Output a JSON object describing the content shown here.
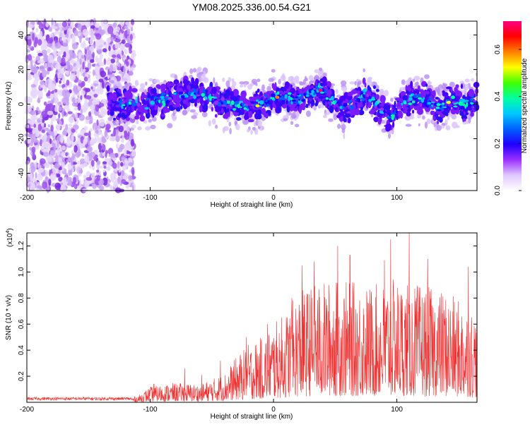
{
  "title": "YM08.2025.336.00.54.G21",
  "chart_data": [
    {
      "type": "heatmap",
      "name": "spectrogram",
      "xlabel": "Height of straight line (km)",
      "ylabel": "Frequency (Hz)",
      "xlim": [
        -200,
        165
      ],
      "ylim": [
        -50,
        48
      ],
      "xticks": [
        -200,
        -100,
        0,
        100
      ],
      "yticks": [
        -40,
        -20,
        0,
        20,
        40
      ],
      "noise_region_x": [
        -200,
        -113
      ],
      "signal_start_x": -135,
      "center_line": [
        [
          -135,
          1
        ],
        [
          -120,
          0
        ],
        [
          -100,
          1
        ],
        [
          -80,
          4
        ],
        [
          -70,
          6
        ],
        [
          -60,
          6
        ],
        [
          -50,
          2
        ],
        [
          -40,
          0
        ],
        [
          -30,
          0
        ],
        [
          -20,
          -2
        ],
        [
          -10,
          0
        ],
        [
          0,
          4
        ],
        [
          10,
          4
        ],
        [
          20,
          3
        ],
        [
          30,
          6
        ],
        [
          37,
          9
        ],
        [
          45,
          3
        ],
        [
          55,
          -2
        ],
        [
          65,
          0
        ],
        [
          75,
          6
        ],
        [
          85,
          -2
        ],
        [
          95,
          -8
        ],
        [
          105,
          0
        ],
        [
          115,
          4
        ],
        [
          125,
          2
        ],
        [
          135,
          -3
        ],
        [
          145,
          2
        ],
        [
          155,
          0
        ],
        [
          165,
          2
        ]
      ],
      "colorbar": {
        "label": "Normalized spectral amplitude",
        "range": [
          0,
          0.72
        ],
        "ticks": [
          0.0,
          0.2,
          0.4,
          0.6
        ],
        "tick_labels": [
          "0.0",
          "0.2",
          "0.4",
          "0.6"
        ],
        "colors": [
          "#ffffff",
          "#e0c8ff",
          "#9a30ff",
          "#2000ff",
          "#0060ff",
          "#00c8ff",
          "#00ffa0",
          "#40ff00",
          "#ffff00",
          "#ff8000",
          "#ff0000",
          "#ff0080"
        ]
      }
    },
    {
      "type": "line",
      "name": "snr",
      "xlabel": "Height of straight line (km)",
      "ylabel": "SNR (10 * v/v)",
      "scale_label": "(x10",
      "scale_exp": "4",
      "scale_close": ")",
      "xlim": [
        -200,
        165
      ],
      "ylim": [
        0,
        1.3
      ],
      "xticks": [
        -200,
        -100,
        0,
        100
      ],
      "yticks": [
        0.2,
        0.4,
        0.6,
        0.8,
        1.0,
        1.2
      ],
      "ytick_labels": [
        "0.2",
        "0.4",
        "0.6",
        "0.8",
        "1.0",
        "1.2"
      ],
      "color": "#ee3030",
      "envelope": [
        [
          -200,
          0.03
        ],
        [
          -120,
          0.03
        ],
        [
          -110,
          0.05
        ],
        [
          -100,
          0.12
        ],
        [
          -80,
          0.15
        ],
        [
          -60,
          0.14
        ],
        [
          -40,
          0.22
        ],
        [
          -30,
          0.35
        ],
        [
          -20,
          0.45
        ],
        [
          -10,
          0.5
        ],
        [
          0,
          0.6
        ],
        [
          10,
          0.7
        ],
        [
          20,
          0.85
        ],
        [
          30,
          0.9
        ],
        [
          50,
          0.95
        ],
        [
          80,
          0.9
        ],
        [
          100,
          0.95
        ],
        [
          120,
          0.9
        ],
        [
          140,
          0.85
        ],
        [
          165,
          0.7
        ]
      ],
      "peaks": [
        [
          -97,
          0.14
        ],
        [
          -72,
          0.26
        ],
        [
          -58,
          0.21
        ],
        [
          -43,
          0.32
        ],
        [
          -22,
          0.5
        ],
        [
          -5,
          0.6
        ],
        [
          15,
          0.8
        ],
        [
          23,
          1.05
        ],
        [
          33,
          1.08
        ],
        [
          52,
          1.2
        ],
        [
          62,
          1.13
        ],
        [
          90,
          1.09
        ],
        [
          95,
          1.25
        ],
        [
          110,
          1.3
        ],
        [
          125,
          1.1
        ],
        [
          158,
          1.04
        ]
      ]
    }
  ]
}
